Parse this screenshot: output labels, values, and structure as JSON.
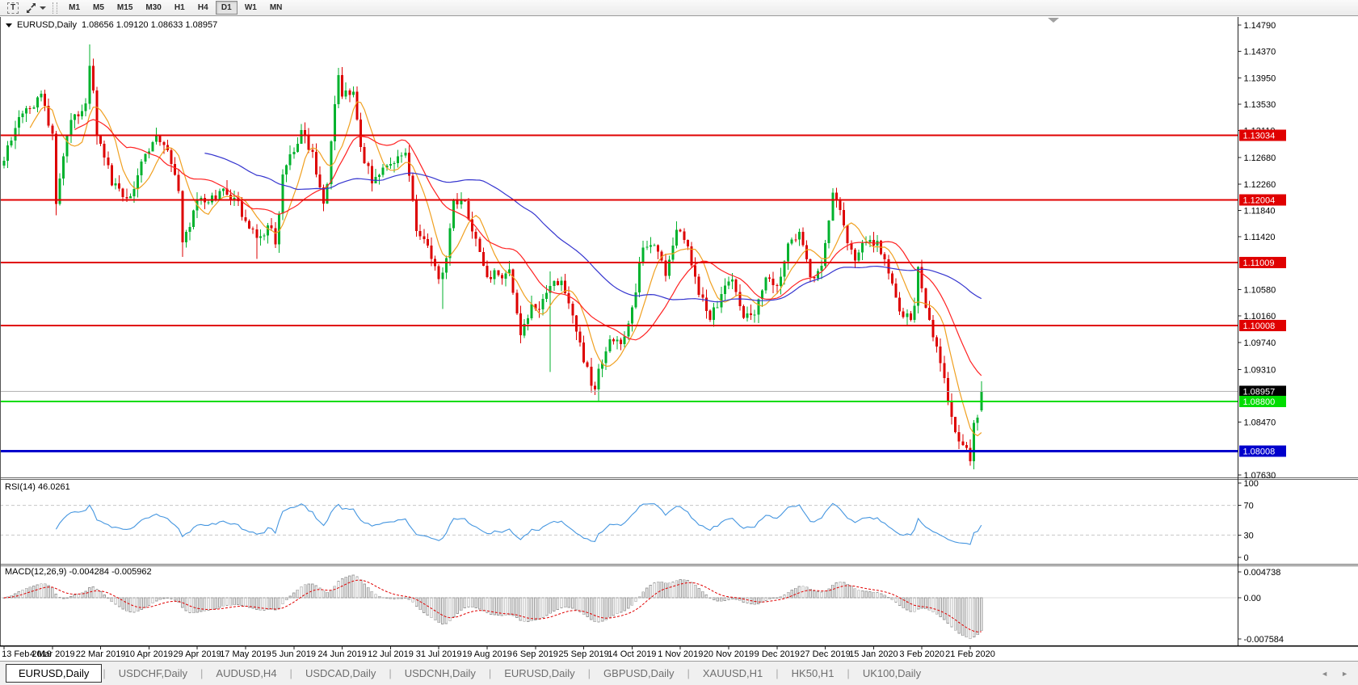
{
  "toolbar": {
    "text_tool_glyph": "T",
    "timeframes": [
      "M1",
      "M5",
      "M15",
      "M30",
      "H1",
      "H4",
      "D1",
      "W1",
      "MN"
    ],
    "active_timeframe": "D1"
  },
  "chart": {
    "title": "EURUSD,Daily",
    "ohlc_text": "1.08656 1.09120 1.08633 1.08957",
    "levels": [
      {
        "price": "1.13034",
        "color": "#e00000",
        "line_width": 2
      },
      {
        "price": "1.12004",
        "color": "#e00000",
        "line_width": 2
      },
      {
        "price": "1.11009",
        "color": "#e00000",
        "line_width": 2
      },
      {
        "price": "1.10008",
        "color": "#e00000",
        "line_width": 2
      },
      {
        "price": "1.08800",
        "color": "#00dd00",
        "line_width": 2
      },
      {
        "price": "1.08008",
        "color": "#0000cc",
        "line_width": 3
      }
    ],
    "bid": {
      "price": "1.08957",
      "line_color": "#b4b4b4",
      "label_bg": "#000000"
    }
  },
  "price_axis": {
    "ticks": [
      "1.14790",
      "1.14370",
      "1.13950",
      "1.13530",
      "1.13110",
      "1.12680",
      "1.12260",
      "1.11840",
      "1.11420",
      "1.10580",
      "1.10160",
      "1.09740",
      "1.09310",
      "1.08470",
      "1.07630"
    ]
  },
  "rsi": {
    "label": "RSI(14) 46.0261",
    "period": 14,
    "value": 46.0261,
    "scale_ticks": [
      "100",
      "70",
      "30",
      "0"
    ],
    "dashed_levels": [
      70,
      30
    ],
    "line_color": "#4596e0"
  },
  "macd": {
    "label": "MACD(12,26,9) -0.004284 -0.005962",
    "macd_value": -0.004284,
    "signal_value": -0.005962,
    "scale_ticks": [
      "0.004738",
      "0.00",
      "-0.007584"
    ],
    "histogram_color": "#9c9c9c",
    "signal_color": "#e00000"
  },
  "date_axis": {
    "labels": [
      "13 Feb 2019",
      "4 Mar 2019",
      "22 Mar 2019",
      "10 Apr 2019",
      "29 Apr 2019",
      "17 May 2019",
      "5 Jun 2019",
      "24 Jun 2019",
      "12 Jul 2019",
      "31 Jul 2019",
      "19 Aug 2019",
      "6 Sep 2019",
      "25 Sep 2019",
      "14 Oct 2019",
      "1 Nov 2019",
      "20 Nov 2019",
      "9 Dec 2019",
      "27 Dec 2019",
      "15 Jan 2020",
      "3 Feb 2020",
      "21 Feb 2020"
    ]
  },
  "tabbar": {
    "items": [
      "EURUSD,Daily",
      "USDCHF,Daily",
      "AUDUSD,H4",
      "USDCAD,Daily",
      "USDCNH,Daily",
      "EURUSD,Daily",
      "GBPUSD,Daily",
      "XAUUSD,H1",
      "HK50,H1",
      "UK100,Daily"
    ],
    "active_index": 0,
    "scroll_left_glyph": "◄",
    "scroll_right_glyph": "►"
  },
  "chart_data": {
    "type": "candlestick",
    "symbol": "EURUSD",
    "timeframe": "Daily",
    "current_bar": {
      "open": 1.08656,
      "high": 1.0912,
      "low": 1.08633,
      "close": 1.08957
    },
    "bull_color": "#00b22d",
    "bear_color": "#dd0000",
    "moving_averages": [
      {
        "period": 8,
        "color": "#f0a020"
      },
      {
        "period": 20,
        "color": "#ff2222"
      },
      {
        "period": 55,
        "color": "#3535cf"
      }
    ],
    "y_min": 1.0763,
    "y_max": 1.1479,
    "price_anchors": [
      [
        0,
        1.1263
      ],
      [
        2,
        1.1295
      ],
      [
        5,
        1.1338
      ],
      [
        8,
        1.1348
      ],
      [
        10,
        1.137
      ],
      [
        13,
        1.1306
      ],
      [
        14,
        1.1194
      ],
      [
        15,
        1.1235
      ],
      [
        18,
        1.1328
      ],
      [
        21,
        1.1342
      ],
      [
        22,
        1.1354
      ],
      [
        23,
        1.1414
      ],
      [
        24,
        1.1375
      ],
      [
        25,
        1.1302
      ],
      [
        27,
        1.1268
      ],
      [
        29,
        1.1224
      ],
      [
        32,
        1.1205
      ],
      [
        35,
        1.1218
      ],
      [
        38,
        1.1274
      ],
      [
        41,
        1.1304
      ],
      [
        44,
        1.128
      ],
      [
        45,
        1.1258
      ],
      [
        47,
        1.1215
      ],
      [
        48,
        1.1133
      ],
      [
        49,
        1.115
      ],
      [
        52,
        1.12
      ],
      [
        55,
        1.1197
      ],
      [
        58,
        1.1215
      ],
      [
        62,
        1.1204
      ],
      [
        65,
        1.1167
      ],
      [
        68,
        1.114
      ],
      [
        71,
        1.116
      ],
      [
        73,
        1.113
      ],
      [
        75,
        1.1241
      ],
      [
        78,
        1.1277
      ],
      [
        80,
        1.1312
      ],
      [
        83,
        1.1277
      ],
      [
        86,
        1.1195
      ],
      [
        87,
        1.1226
      ],
      [
        88,
        1.1294
      ],
      [
        90,
        1.1399
      ],
      [
        91,
        1.1365
      ],
      [
        94,
        1.1373
      ],
      [
        96,
        1.1285
      ],
      [
        99,
        1.1227
      ],
      [
        102,
        1.1252
      ],
      [
        105,
        1.1259
      ],
      [
        108,
        1.1276
      ],
      [
        111,
        1.1151
      ],
      [
        114,
        1.1128
      ],
      [
        117,
        1.1075
      ],
      [
        118,
        1.1085
      ],
      [
        119,
        1.1108
      ],
      [
        121,
        1.12
      ],
      [
        124,
        1.1199
      ],
      [
        127,
        1.1139
      ],
      [
        130,
        1.1078
      ],
      [
        133,
        1.1081
      ],
      [
        136,
        1.109
      ],
      [
        139,
        1.0985
      ],
      [
        142,
        1.1035
      ],
      [
        143,
        1.1027
      ],
      [
        145,
        1.1043
      ],
      [
        147,
        1.1064
      ],
      [
        150,
        1.1072
      ],
      [
        153,
        1.1017
      ],
      [
        156,
        1.0942
      ],
      [
        159,
        1.0899
      ],
      [
        160,
        1.0932
      ],
      [
        163,
        1.0979
      ],
      [
        166,
        1.0971
      ],
      [
        169,
        1.103
      ],
      [
        172,
        1.1125
      ],
      [
        175,
        1.1129
      ],
      [
        178,
        1.108
      ],
      [
        181,
        1.1153
      ],
      [
        184,
        1.1127
      ],
      [
        187,
        1.105
      ],
      [
        190,
        1.101
      ],
      [
        193,
        1.1051
      ],
      [
        196,
        1.1074
      ],
      [
        199,
        1.1013
      ],
      [
        202,
        1.1018
      ],
      [
        205,
        1.1077
      ],
      [
        208,
        1.1064
      ],
      [
        211,
        1.1131
      ],
      [
        214,
        1.115
      ],
      [
        217,
        1.1078
      ],
      [
        220,
        1.1096
      ],
      [
        223,
        1.1212
      ],
      [
        226,
        1.116
      ],
      [
        229,
        1.1104
      ],
      [
        232,
        1.1134
      ],
      [
        235,
        1.1136
      ],
      [
        238,
        1.1084
      ],
      [
        241,
        1.1023
      ],
      [
        244,
        1.101
      ],
      [
        245,
        1.1032
      ],
      [
        246,
        1.1094
      ],
      [
        247,
        1.106
      ],
      [
        250,
        1.0982
      ],
      [
        253,
        1.0917
      ],
      [
        256,
        1.0831
      ],
      [
        259,
        1.0806
      ],
      [
        260,
        1.0785
      ],
      [
        261,
        1.0846
      ],
      [
        262,
        1.0854
      ],
      [
        263,
        1.0896
      ]
    ],
    "special_wicks": {
      "14": {
        "l": 1.1176
      },
      "23": {
        "h": 1.1448
      },
      "48": {
        "l": 1.111
      },
      "68": {
        "l": 1.1107
      },
      "118": {
        "l": 1.1027
      },
      "147": {
        "l": 1.0927,
        "h": 1.1087
      },
      "160": {
        "l": 1.0879
      },
      "260": {
        "l": 1.0778
      }
    }
  }
}
